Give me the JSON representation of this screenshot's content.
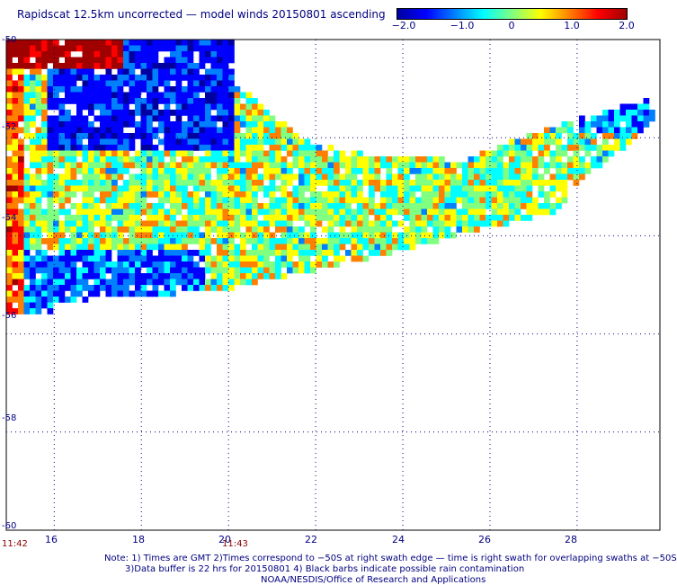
{
  "title": "Rapidscat 12.5km uncorrected — model winds 20150801 ascending",
  "colorbar": {
    "ticks": [
      "−2.0",
      "−1.0",
      "0",
      "1.0",
      "2.0"
    ],
    "range": [
      -2.0,
      2.0
    ],
    "colors": [
      "#0000a0",
      "#0000ff",
      "#0080ff",
      "#00ffff",
      "#80ff80",
      "#ffff00",
      "#ff8000",
      "#ff0000",
      "#a00000"
    ]
  },
  "axes": {
    "lat_labels": [
      "-50",
      "-52",
      "-54",
      "-56",
      "-58",
      "-60"
    ],
    "lon_labels": [
      "16",
      "18",
      "20",
      "22",
      "24",
      "26",
      "28"
    ],
    "time_labels": [
      "11:42",
      "11:43"
    ],
    "grid": "dotted"
  },
  "notes": [
    "Note: 1) Times are GMT 2)Times correspond to −50S at right swath edge — time is right swath for overlapping swaths at −50S",
    "3)Data buffer is 22 hrs for 20150801 4) Black barbs indicate possible rain contamination",
    "NOAA/NESDIS/Office of Research and Applications"
  ],
  "swath": {
    "lon_range": [
      14.9,
      29.8
    ],
    "lat_range": [
      -50.0,
      -55.9
    ],
    "upper_edge": [
      [
        14.9,
        -50.0
      ],
      [
        20.2,
        -50.0
      ],
      [
        21.0,
        -51.6
      ],
      [
        22.0,
        -52.0
      ],
      [
        24.0,
        -52.4
      ],
      [
        26.0,
        -52.4
      ],
      [
        28.0,
        -52.0
      ],
      [
        29.2,
        -51.6
      ],
      [
        29.8,
        -51.7
      ],
      [
        29.8,
        -52.2
      ],
      [
        28.6,
        -52.6
      ],
      [
        27.6,
        -53.0
      ],
      [
        26.0,
        -53.3
      ],
      [
        24.8,
        -53.8
      ],
      [
        23.5,
        -54.2
      ],
      [
        22.0,
        -54.5
      ],
      [
        20.8,
        -55.0
      ],
      [
        19.8,
        -55.1
      ],
      [
        17.5,
        -55.4
      ],
      [
        16.0,
        -55.5
      ],
      [
        15.2,
        -55.9
      ],
      [
        14.9,
        -55.9
      ]
    ]
  }
}
